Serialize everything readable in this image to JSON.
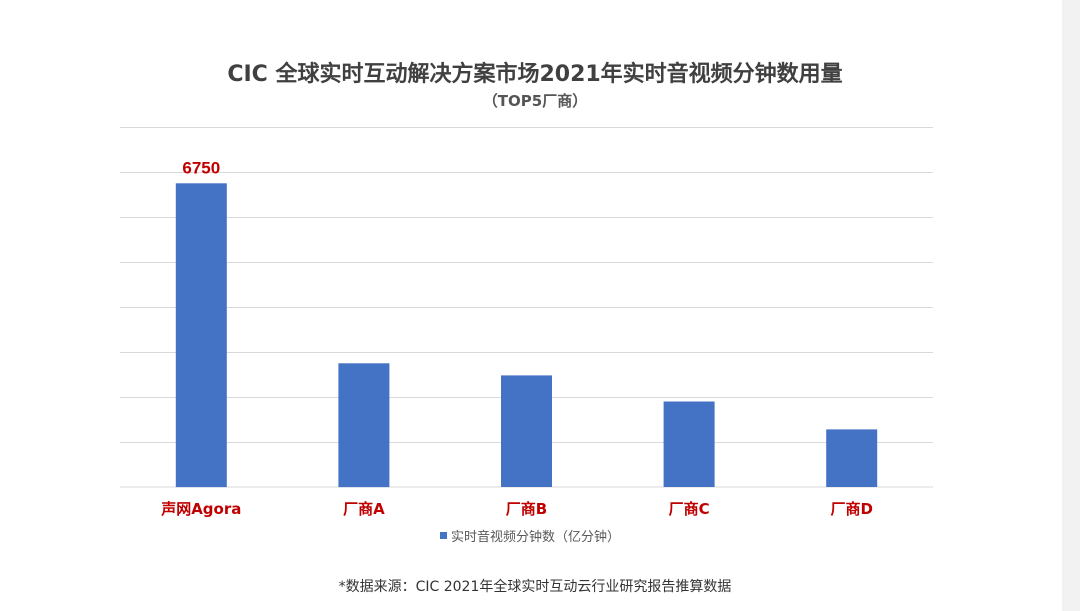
{
  "colors": {
    "bar": "#4472c4",
    "category_label": "#c00000",
    "data_label": "#c00000",
    "gridline": "#d9d9d9"
  },
  "chart_data": {
    "type": "bar",
    "title": "CIC 全球实时互动解决方案市场2021年实时音视频分钟数用量",
    "subtitle": "（TOP5厂商）",
    "categories": [
      "声网Agora",
      "厂商A",
      "厂商B",
      "厂商C",
      "厂商D"
    ],
    "series": [
      {
        "name": "实时音视频分钟数（亿分钟）",
        "values": [
          6750,
          2750,
          2480,
          1900,
          1280
        ]
      }
    ],
    "data_labels": [
      "6750",
      "",
      "",
      "",
      ""
    ],
    "ylim": [
      0,
      8000
    ],
    "gridlines": [
      1000,
      2000,
      3000,
      4000,
      5000,
      6000,
      7000,
      8000
    ],
    "y_tick_labels_shown": false,
    "legend_position": "bottom",
    "grid": true
  },
  "footnote": "*数据来源：CIC 2021年全球实时互动云行业研究报告推算数据"
}
